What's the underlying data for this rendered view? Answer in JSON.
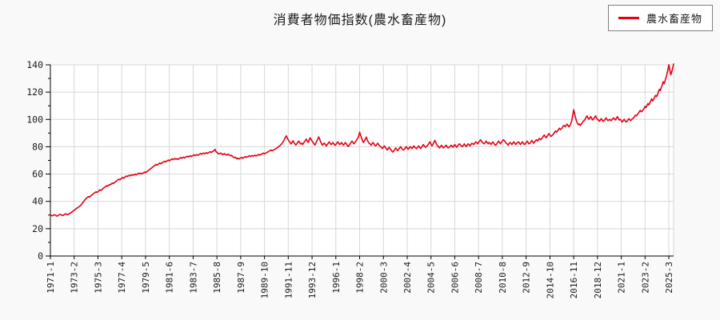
{
  "title": "消費者物価指数(農水畜産物)",
  "legend": {
    "items": [
      {
        "label": "農水畜産物",
        "color": "#e60012"
      }
    ]
  },
  "colors": {
    "page_background": "#f9f9f9",
    "plot_background": "#ffffff",
    "grid": "#d7d7d7",
    "axis": "#000000",
    "text": "#1a1a1a",
    "legend_border": "#7f7f7f",
    "series_red": "#e60012"
  },
  "chart_data": {
    "type": "line",
    "title": "消費者物価指数(農水畜産物)",
    "xlabel": "",
    "ylabel": "",
    "ylim": [
      0,
      140
    ],
    "y_tick_major": 20,
    "y_tick_minor": 10,
    "y_tick_labels": [
      "0",
      "20",
      "40",
      "60",
      "80",
      "100",
      "120",
      "140"
    ],
    "grid": true,
    "legend_position": "top-right",
    "x_start": "1971-1",
    "x_end": "2025-8",
    "x_frequency": "monthly",
    "x_tick_step": 25,
    "x_tick_labels": [
      "1971-1",
      "1973-2",
      "1975-3",
      "1977-4",
      "1979-5",
      "1981-6",
      "1983-7",
      "1985-8",
      "1987-9",
      "1989-10",
      "1991-11",
      "1993-12",
      "1996-1",
      "1998-2",
      "2000-3",
      "2002-4",
      "2004-5",
      "2006-6",
      "2008-7",
      "2010-8",
      "2012-9",
      "2014-10",
      "2016-11",
      "2018-12",
      "2021-1",
      "2023-2",
      "2025-3"
    ],
    "series": [
      {
        "name": "農水畜産物",
        "color": "#e60012",
        "values": [
          30.2,
          29.7,
          29.4,
          29.8,
          30.3,
          30.0,
          29.5,
          29.2,
          29.6,
          30.1,
          30.5,
          30.2,
          29.9,
          29.6,
          30.0,
          30.5,
          30.9,
          30.6,
          30.2,
          30.5,
          31.0,
          31.5,
          31.9,
          32.4,
          33.0,
          33.5,
          34.0,
          34.6,
          35.1,
          35.5,
          36.0,
          36.6,
          37.3,
          38.1,
          39.0,
          39.9,
          40.9,
          41.7,
          42.4,
          43.0,
          43.5,
          43.1,
          43.7,
          44.3,
          44.9,
          45.4,
          46.0,
          46.5,
          47.0,
          46.5,
          47.1,
          47.8,
          48.4,
          48.0,
          48.6,
          49.2,
          49.8,
          50.3,
          50.9,
          51.4,
          51.1,
          51.7,
          52.3,
          52.1,
          52.8,
          53.4,
          53.0,
          53.6,
          54.2,
          54.7,
          55.2,
          55.7,
          56.3,
          55.8,
          56.4,
          57.0,
          57.5,
          57.0,
          57.6,
          58.1,
          58.6,
          58.2,
          58.7,
          59.1,
          58.7,
          59.2,
          59.6,
          59.1,
          59.5,
          60.0,
          59.4,
          59.8,
          60.3,
          60.7,
          60.2,
          60.6,
          60.1,
          60.5,
          61.0,
          61.5,
          61.0,
          61.6,
          62.1,
          62.7,
          63.2,
          63.8,
          64.3,
          64.9,
          65.4,
          66.0,
          66.5,
          67.1,
          66.5,
          67.1,
          67.6,
          68.1,
          67.5,
          68.0,
          68.5,
          68.9,
          69.4,
          68.8,
          69.3,
          69.8,
          70.3,
          69.7,
          70.2,
          70.7,
          71.1,
          70.5,
          71.0,
          71.4,
          70.9,
          71.3,
          70.7,
          71.2,
          71.7,
          72.1,
          71.5,
          72.0,
          72.4,
          71.8,
          72.3,
          72.7,
          73.1,
          72.5,
          73.0,
          73.4,
          72.8,
          73.3,
          73.7,
          74.1,
          73.5,
          73.9,
          74.3,
          73.7,
          74.1,
          74.6,
          75.1,
          74.5,
          75.0,
          75.4,
          74.8,
          75.3,
          75.7,
          75.1,
          75.6,
          76.0,
          76.4,
          75.8,
          76.3,
          76.7,
          77.2,
          78.1,
          76.5,
          75.9,
          75.3,
          74.7,
          75.0,
          75.4,
          74.8,
          74.2,
          74.6,
          75.0,
          74.4,
          73.8,
          74.2,
          74.6,
          74.0,
          73.4,
          73.8,
          73.2,
          72.6,
          72.0,
          72.4,
          71.8,
          71.2,
          71.6,
          71.0,
          71.4,
          71.8,
          72.2,
          71.6,
          72.0,
          72.4,
          72.8,
          72.2,
          72.6,
          73.0,
          73.4,
          72.8,
          73.2,
          73.6,
          73.0,
          73.4,
          73.8,
          73.2,
          73.6,
          74.0,
          74.4,
          73.8,
          74.2,
          74.6,
          75.0,
          75.4,
          74.8,
          75.2,
          75.6,
          76.0,
          76.4,
          76.8,
          77.2,
          77.6,
          77.0,
          77.4,
          77.8,
          78.2,
          78.6,
          79.1,
          79.6,
          80.1,
          80.7,
          81.3,
          82.0,
          83.0,
          84.1,
          85.5,
          87.0,
          88.0,
          86.4,
          85.0,
          84.0,
          83.0,
          82.0,
          83.4,
          84.4,
          83.0,
          82.0,
          81.2,
          82.2,
          83.2,
          84.2,
          83.1,
          82.1,
          82.6,
          81.6,
          82.6,
          83.6,
          84.6,
          85.6,
          84.2,
          83.2,
          85.2,
          86.6,
          85.2,
          84.2,
          83.2,
          82.2,
          81.2,
          82.6,
          84.2,
          85.6,
          87.2,
          85.6,
          83.6,
          82.2,
          81.2,
          82.2,
          82.6,
          81.6,
          80.6,
          81.6,
          82.6,
          83.6,
          82.6,
          81.6,
          82.1,
          83.1,
          82.1,
          81.1,
          81.6,
          82.6,
          83.6,
          82.6,
          81.6,
          82.1,
          83.1,
          82.1,
          81.1,
          82.1,
          83.1,
          82.1,
          81.1,
          80.1,
          81.1,
          82.1,
          83.1,
          84.1,
          83.1,
          82.1,
          83.1,
          84.1,
          85.1,
          86.1,
          87.6,
          90.6,
          88.6,
          86.6,
          84.6,
          83.1,
          84.1,
          85.6,
          87.1,
          85.1,
          83.6,
          82.6,
          82.1,
          81.1,
          82.1,
          83.1,
          82.1,
          81.1,
          80.6,
          81.6,
          82.6,
          81.6,
          80.6,
          80.1,
          79.6,
          78.6,
          79.6,
          80.6,
          79.6,
          78.6,
          77.6,
          78.6,
          79.6,
          78.6,
          77.6,
          76.6,
          76.1,
          77.1,
          78.1,
          79.1,
          78.1,
          77.1,
          78.1,
          79.1,
          80.1,
          79.1,
          78.1,
          77.6,
          78.1,
          79.1,
          80.1,
          79.1,
          78.1,
          79.1,
          80.1,
          79.6,
          78.6,
          79.6,
          80.6,
          79.6,
          79.1,
          78.6,
          79.6,
          80.6,
          79.6,
          78.6,
          79.6,
          80.6,
          81.6,
          80.6,
          79.6,
          80.1,
          80.6,
          81.6,
          82.6,
          83.6,
          82.1,
          80.6,
          81.6,
          83.1,
          84.6,
          83.1,
          81.6,
          80.6,
          80.1,
          79.1,
          80.1,
          81.1,
          80.1,
          79.1,
          79.6,
          80.6,
          81.1,
          80.1,
          79.1,
          79.6,
          80.1,
          81.1,
          80.6,
          79.6,
          80.6,
          81.6,
          80.6,
          79.6,
          80.6,
          81.6,
          82.1,
          81.1,
          80.6,
          80.1,
          81.1,
          82.1,
          81.1,
          80.1,
          81.1,
          82.1,
          81.6,
          80.6,
          81.6,
          82.6,
          82.1,
          81.6,
          82.6,
          83.6,
          83.1,
          82.1,
          83.1,
          84.1,
          85.1,
          84.1,
          83.1,
          82.6,
          82.1,
          83.1,
          84.1,
          83.1,
          82.1,
          83.1,
          82.6,
          81.6,
          82.6,
          83.6,
          82.6,
          81.6,
          81.1,
          82.1,
          83.1,
          84.1,
          83.1,
          82.1,
          83.1,
          84.1,
          85.1,
          84.6,
          83.6,
          82.6,
          82.1,
          81.1,
          82.1,
          83.1,
          82.6,
          81.6,
          82.6,
          83.6,
          82.6,
          81.6,
          82.6,
          83.1,
          83.6,
          82.6,
          81.6,
          82.6,
          83.6,
          82.6,
          81.6,
          82.1,
          83.1,
          84.1,
          83.1,
          82.1,
          82.6,
          83.6,
          84.6,
          83.6,
          82.6,
          83.6,
          84.6,
          85.1,
          84.1,
          85.1,
          86.1,
          85.1,
          85.6,
          86.6,
          87.6,
          88.6,
          87.6,
          86.6,
          87.6,
          88.6,
          89.6,
          88.6,
          87.6,
          88.1,
          88.6,
          89.6,
          90.6,
          91.6,
          90.6,
          91.6,
          92.6,
          93.6,
          92.6,
          93.1,
          94.1,
          95.1,
          95.6,
          94.6,
          95.6,
          96.6,
          95.6,
          94.6,
          95.6,
          97.1,
          99.1,
          103.1,
          107.1,
          104.1,
          101.1,
          98.6,
          97.1,
          96.1,
          96.6,
          95.6,
          96.6,
          97.6,
          98.6,
          99.1,
          100.1,
          101.6,
          102.6,
          101.1,
          100.1,
          101.1,
          102.1,
          100.6,
          99.6,
          100.6,
          101.6,
          102.6,
          101.1,
          100.1,
          99.6,
          98.6,
          99.6,
          100.6,
          99.6,
          98.6,
          99.1,
          100.1,
          101.1,
          100.1,
          99.1,
          99.6,
          100.1,
          99.1,
          99.6,
          100.6,
          101.1,
          100.1,
          99.6,
          101.1,
          102.1,
          100.6,
          99.6,
          100.1,
          99.1,
          98.1,
          99.1,
          100.1,
          99.1,
          98.1,
          98.6,
          99.6,
          100.6,
          99.6,
          99.1,
          100.1,
          100.6,
          101.1,
          102.1,
          103.1,
          102.6,
          103.6,
          104.6,
          105.6,
          106.6,
          105.6,
          106.1,
          107.1,
          108.1,
          109.6,
          108.6,
          110.1,
          111.6,
          110.6,
          112.1,
          113.6,
          115.1,
          113.6,
          114.6,
          116.1,
          117.6,
          116.6,
          118.1,
          120.1,
          122.1,
          121.1,
          123.1,
          125.1,
          127.6,
          126.1,
          128.1,
          130.6,
          133.1,
          136.6,
          140.1,
          136.6,
          132.6,
          134.6,
          137.6,
          140.6
        ]
      }
    ]
  }
}
